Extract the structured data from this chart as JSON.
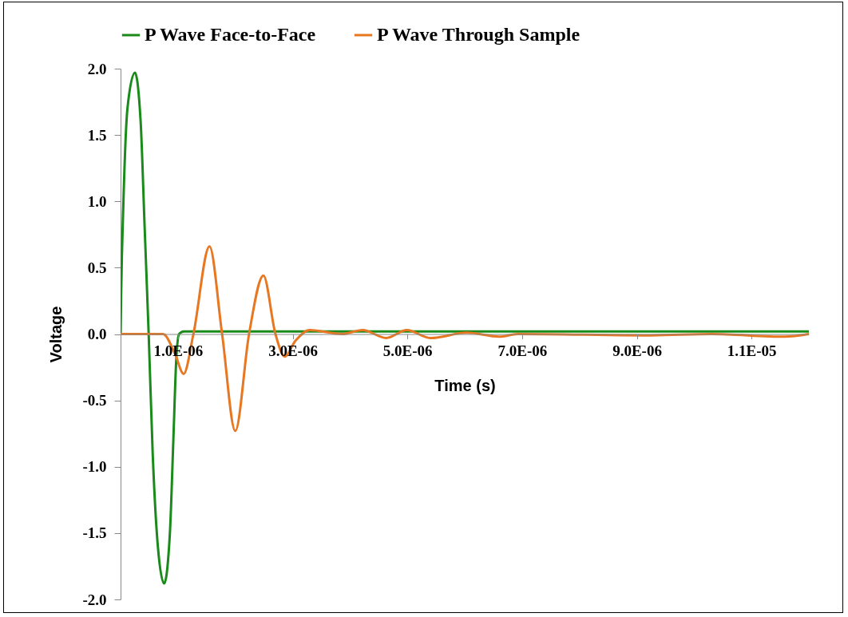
{
  "chart_data": {
    "type": "line",
    "xlabel": "Time (s)",
    "ylabel": "Voltage",
    "legend": "top",
    "grid": false,
    "marker": "none",
    "line_style": "solid",
    "xlim": [
      0,
      1.2e-05
    ],
    "ylim": [
      -2.0,
      2.0
    ],
    "xticks": [
      {
        "value": 1e-06,
        "label": "1.0E-06"
      },
      {
        "value": 3e-06,
        "label": "3.0E-06"
      },
      {
        "value": 5e-06,
        "label": "5.0E-06"
      },
      {
        "value": 7e-06,
        "label": "7.0E-06"
      },
      {
        "value": 9e-06,
        "label": "9.0E-06"
      },
      {
        "value": 1.1e-05,
        "label": "1.1E-05"
      }
    ],
    "yticks": [
      {
        "value": -2,
        "label": "-2.0"
      },
      {
        "value": -1.5,
        "label": "-1.5"
      },
      {
        "value": -1,
        "label": "-1.0"
      },
      {
        "value": -0.5,
        "label": "-0.5"
      },
      {
        "value": 0,
        "label": "0.0"
      },
      {
        "value": 0.5,
        "label": "0.5"
      },
      {
        "value": 1,
        "label": "1.0"
      },
      {
        "value": 1.5,
        "label": "1.5"
      },
      {
        "value": 2,
        "label": "2.0"
      }
    ],
    "series": [
      {
        "name": "P Wave Face-to-Face",
        "color": "#1a8a1a",
        "x": [
          0,
          1e-08,
          5e-08,
          1.2e-07,
          2.5e-07,
          3.5e-07,
          4.2e-07,
          4.9e-07,
          5.6e-07,
          6.5e-07,
          7.6e-07,
          8.6e-07,
          9.2e-07,
          9.7e-07,
          1.02e-06,
          1.1e-06,
          1.2e-05
        ],
        "values": [
          0,
          0.3,
          1.0,
          1.7,
          1.97,
          1.6,
          0.8,
          0,
          -0.9,
          -1.6,
          -1.88,
          -1.5,
          -0.8,
          -0.2,
          0,
          0.02,
          0.02
        ]
      },
      {
        "name": "P Wave Through Sample",
        "color": "#e87722",
        "x": [
          0,
          7.4e-07,
          9.5e-07,
          1.1e-06,
          1.27e-06,
          1.55e-06,
          1.77e-06,
          2e-06,
          2.24e-06,
          2.49e-06,
          2.7e-06,
          2.86e-06,
          3.05e-06,
          3.3e-06,
          3.86e-06,
          4.22e-06,
          4.63e-06,
          4.99e-06,
          5.4e-06,
          6.04e-06,
          6.6e-06,
          6.92e-06,
          9.25e-06,
          1.03e-05,
          1.158e-05,
          1.2e-05
        ],
        "values": [
          0,
          0,
          -0.15,
          -0.3,
          0,
          0.66,
          0,
          -0.73,
          0,
          0.44,
          0,
          -0.17,
          -0.05,
          0.03,
          0,
          0.03,
          -0.03,
          0.03,
          -0.03,
          0.01,
          -0.02,
          0,
          -0.01,
          0,
          -0.02,
          0
        ]
      }
    ]
  }
}
